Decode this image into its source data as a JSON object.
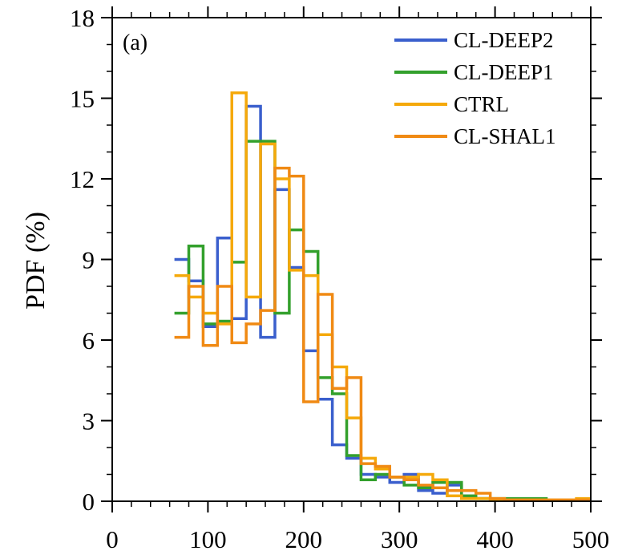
{
  "chart_data": {
    "type": "line",
    "step": true,
    "title": "",
    "panel_label": "(a)",
    "xlabel": "",
    "ylabel": "PDF (%)",
    "xlim": [
      0,
      500
    ],
    "ylim": [
      0,
      18
    ],
    "xticks": [
      0,
      100,
      200,
      300,
      400,
      500
    ],
    "yticks": [
      0,
      3,
      6,
      9,
      12,
      15,
      18
    ],
    "x_minor_step": 20,
    "y_minor_step": 1,
    "grid": false,
    "legend_position": "top-right",
    "colors": {
      "CL-DEEP2": "#3a5fcd",
      "CL-DEEP1": "#33a02c",
      "CTRL": "#f5a90a",
      "CL-SHAL1": "#f08a14"
    },
    "series": [
      {
        "name": "CL-DEEP2",
        "color": "#3a5fcd",
        "x": [
          65,
          80,
          95,
          110,
          125,
          140,
          155,
          170,
          185,
          200,
          215,
          230,
          245,
          260,
          275,
          290,
          305,
          320,
          335,
          350,
          365,
          380,
          395,
          410,
          425,
          440
        ],
        "values": [
          9.0,
          8.2,
          6.5,
          9.8,
          6.8,
          14.7,
          6.1,
          11.6,
          8.7,
          5.6,
          3.8,
          2.1,
          1.6,
          1.0,
          0.9,
          0.7,
          1.0,
          0.4,
          0.3,
          0.6,
          0.1,
          0.1,
          0.05,
          0.05,
          0.05,
          0.05
        ]
      },
      {
        "name": "CL-DEEP1",
        "color": "#33a02c",
        "x": [
          65,
          80,
          95,
          110,
          125,
          140,
          155,
          170,
          185,
          200,
          215,
          230,
          245,
          260,
          275,
          290,
          305,
          320,
          335,
          350,
          365,
          380,
          395,
          410,
          425,
          440
        ],
        "values": [
          7.0,
          9.5,
          6.6,
          6.7,
          8.9,
          13.4,
          13.4,
          7.0,
          10.1,
          9.3,
          4.6,
          4.0,
          1.7,
          0.8,
          1.0,
          0.9,
          0.6,
          0.5,
          0.7,
          0.7,
          0.2,
          0.1,
          0.1,
          0.1,
          0.1,
          0.1
        ]
      },
      {
        "name": "CTRL",
        "color": "#f5a90a",
        "x": [
          65,
          80,
          95,
          110,
          125,
          140,
          155,
          170,
          185,
          200,
          215,
          230,
          245,
          260,
          275,
          290,
          305,
          320,
          335,
          350,
          365,
          380,
          395,
          410,
          425,
          440,
          455,
          470,
          485
        ],
        "values": [
          8.4,
          7.6,
          7.0,
          6.6,
          15.2,
          7.6,
          13.3,
          12.0,
          8.6,
          8.4,
          6.2,
          5.0,
          3.1,
          1.6,
          1.2,
          0.9,
          0.9,
          1.0,
          0.8,
          0.2,
          0.1,
          0.1,
          0.05,
          0.05,
          0.05,
          0.05,
          0.05,
          0.05,
          0.1
        ]
      },
      {
        "name": "CL-SHAL1",
        "color": "#f08a14",
        "x": [
          65,
          80,
          95,
          110,
          125,
          140,
          155,
          170,
          185,
          200,
          215,
          230,
          245,
          260,
          275,
          290,
          305,
          320,
          335,
          350,
          365,
          380,
          395,
          410,
          425,
          440,
          455,
          470,
          485
        ],
        "values": [
          6.1,
          8.0,
          5.8,
          8.0,
          5.9,
          6.6,
          7.1,
          12.4,
          12.1,
          3.7,
          7.7,
          4.2,
          4.6,
          1.4,
          1.3,
          0.9,
          0.8,
          0.6,
          0.5,
          0.4,
          0.4,
          0.3,
          0.1,
          0.05,
          0.05,
          0.05,
          0.05,
          0.05,
          0.05
        ]
      }
    ]
  }
}
